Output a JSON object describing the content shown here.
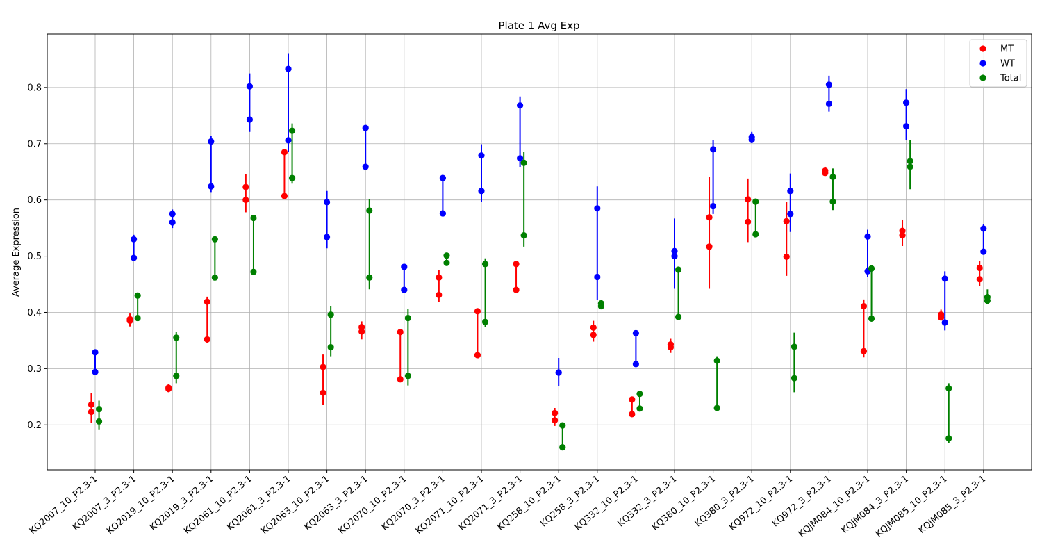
{
  "chart_data": {
    "type": "scatter",
    "title": "Plate 1 Avg Exp",
    "xlabel": "",
    "ylabel": "Average Expression",
    "ylim": [
      0.12,
      0.895
    ],
    "yticks": [
      "0.2",
      "0.3",
      "0.4",
      "0.5",
      "0.6",
      "0.7",
      "0.8"
    ],
    "grid": true,
    "legend_position": "top-right",
    "categories": [
      "KQ2007_10_P2.3-1",
      "KQ2007_3_P2.3-1",
      "KQ2019_10_P2.3-1",
      "KQ2019_3_P2.3-1",
      "KQ2061_10_P2.3-1",
      "KQ2061_3_P2.3-1",
      "KQ2063_10_P2.3-1",
      "KQ2063_3_P2.3-1",
      "KQ2070_10_P2.3-1",
      "KQ2070_3_P2.3-1",
      "KQ2071_10_P2.3-1",
      "KQ2071_3_P2.3-1",
      "KQ258_10_P2.3-1",
      "KQ258_3_P2.3-1",
      "KQ332_10_P2.3-1",
      "KQ332_3_P2.3-1",
      "KQ380_10_P2.3-1",
      "KQ380_3_P2.3-1",
      "KQ972_10_P2.3-1",
      "KQ972_3_P2.3-1",
      "KQJM084_10_P2.3-1",
      "KQJM084_3_P2.3-1",
      "KQJM085_10_P2.3-1",
      "KQJM085_3_P2.3-1"
    ],
    "series": [
      {
        "name": "MT",
        "color": "#ff0000",
        "offset": -0.1,
        "points": [
          [
            0.236,
            0.223
          ],
          [
            0.388,
            0.385
          ],
          [
            0.266,
            0.264
          ],
          [
            0.419,
            0.352
          ],
          [
            0.623,
            0.6
          ],
          [
            0.685,
            0.607
          ],
          [
            0.303,
            0.257
          ],
          [
            0.374,
            0.366
          ],
          [
            0.365,
            0.281
          ],
          [
            0.462,
            0.431
          ],
          [
            0.402,
            0.324
          ],
          [
            0.486,
            0.44
          ],
          [
            0.221,
            0.208
          ],
          [
            0.373,
            0.36
          ],
          [
            0.245,
            0.219
          ],
          [
            0.343,
            0.338
          ],
          [
            0.569,
            0.517
          ],
          [
            0.601,
            0.561
          ],
          [
            0.562,
            0.499
          ],
          [
            0.652,
            0.648
          ],
          [
            0.411,
            0.331
          ],
          [
            0.545,
            0.537
          ],
          [
            0.396,
            0.391
          ],
          [
            0.479,
            0.459
          ]
        ],
        "err_low": [
          0.204,
          0.375,
          0.258,
          0.346,
          0.578,
          0.603,
          0.235,
          0.352,
          0.278,
          0.418,
          0.321,
          0.437,
          0.198,
          0.348,
          0.217,
          0.328,
          0.442,
          0.525,
          0.465,
          0.643,
          0.32,
          0.518,
          0.386,
          0.447
        ],
        "err_high": [
          0.256,
          0.398,
          0.272,
          0.428,
          0.646,
          0.69,
          0.325,
          0.384,
          0.369,
          0.476,
          0.405,
          0.491,
          0.23,
          0.385,
          0.248,
          0.353,
          0.641,
          0.638,
          0.596,
          0.659,
          0.423,
          0.565,
          0.405,
          0.492
        ]
      },
      {
        "name": "WT",
        "color": "#0000ff",
        "offset": 0.0,
        "points": [
          [
            0.329,
            0.294
          ],
          [
            0.53,
            0.497
          ],
          [
            0.575,
            0.56
          ],
          [
            0.704,
            0.624
          ],
          [
            0.802,
            0.743
          ],
          [
            0.833,
            0.706
          ],
          [
            0.596,
            0.534
          ],
          [
            0.728,
            0.659
          ],
          [
            0.481,
            0.44
          ],
          [
            0.639,
            0.576
          ],
          [
            0.679,
            0.616
          ],
          [
            0.768,
            0.674
          ],
          [
            0.293,
            0.293
          ],
          [
            0.585,
            0.463
          ],
          [
            0.363,
            0.308
          ],
          [
            0.509,
            0.5
          ],
          [
            0.69,
            0.589
          ],
          [
            0.712,
            0.707
          ],
          [
            0.616,
            0.575
          ],
          [
            0.805,
            0.771
          ],
          [
            0.535,
            0.473
          ],
          [
            0.773,
            0.731
          ],
          [
            0.46,
            0.382
          ],
          [
            0.549,
            0.508
          ]
        ],
        "err_low": [
          0.294,
          0.495,
          0.55,
          0.614,
          0.721,
          0.685,
          0.514,
          0.655,
          0.44,
          0.574,
          0.596,
          0.658,
          0.269,
          0.422,
          0.308,
          0.442,
          0.575,
          0.701,
          0.543,
          0.757,
          0.463,
          0.707,
          0.368,
          0.506
        ],
        "err_high": [
          0.329,
          0.538,
          0.583,
          0.714,
          0.825,
          0.861,
          0.616,
          0.732,
          0.485,
          0.641,
          0.699,
          0.784,
          0.319,
          0.624,
          0.363,
          0.567,
          0.707,
          0.721,
          0.647,
          0.821,
          0.547,
          0.797,
          0.473,
          0.557
        ]
      },
      {
        "name": "Total",
        "color": "#008000",
        "offset": 0.1,
        "points": [
          [
            0.228,
            0.206
          ],
          [
            0.43,
            0.39
          ],
          [
            0.355,
            0.287
          ],
          [
            0.53,
            0.462
          ],
          [
            0.568,
            0.472
          ],
          [
            0.723,
            0.639
          ],
          [
            0.396,
            0.338
          ],
          [
            0.581,
            0.462
          ],
          [
            0.39,
            0.287
          ],
          [
            0.501,
            0.488
          ],
          [
            0.486,
            0.383
          ],
          [
            0.666,
            0.537
          ],
          [
            0.199,
            0.16
          ],
          [
            0.416,
            0.411
          ],
          [
            0.255,
            0.229
          ],
          [
            0.476,
            0.392
          ],
          [
            0.314,
            0.23
          ],
          [
            0.597,
            0.539
          ],
          [
            0.339,
            0.283
          ],
          [
            0.641,
            0.597
          ],
          [
            0.478,
            0.389
          ],
          [
            0.669,
            0.659
          ],
          [
            0.265,
            0.176
          ],
          [
            0.427,
            0.421
          ]
        ],
        "err_low": [
          0.192,
          0.386,
          0.274,
          0.458,
          0.468,
          0.629,
          0.322,
          0.441,
          0.27,
          0.486,
          0.374,
          0.517,
          0.158,
          0.408,
          0.225,
          0.389,
          0.225,
          0.536,
          0.258,
          0.582,
          0.386,
          0.619,
          0.168,
          0.415
        ],
        "err_high": [
          0.243,
          0.435,
          0.366,
          0.535,
          0.572,
          0.736,
          0.411,
          0.601,
          0.406,
          0.505,
          0.496,
          0.686,
          0.204,
          0.419,
          0.259,
          0.48,
          0.322,
          0.601,
          0.364,
          0.656,
          0.482,
          0.707,
          0.274,
          0.441
        ]
      }
    ]
  }
}
